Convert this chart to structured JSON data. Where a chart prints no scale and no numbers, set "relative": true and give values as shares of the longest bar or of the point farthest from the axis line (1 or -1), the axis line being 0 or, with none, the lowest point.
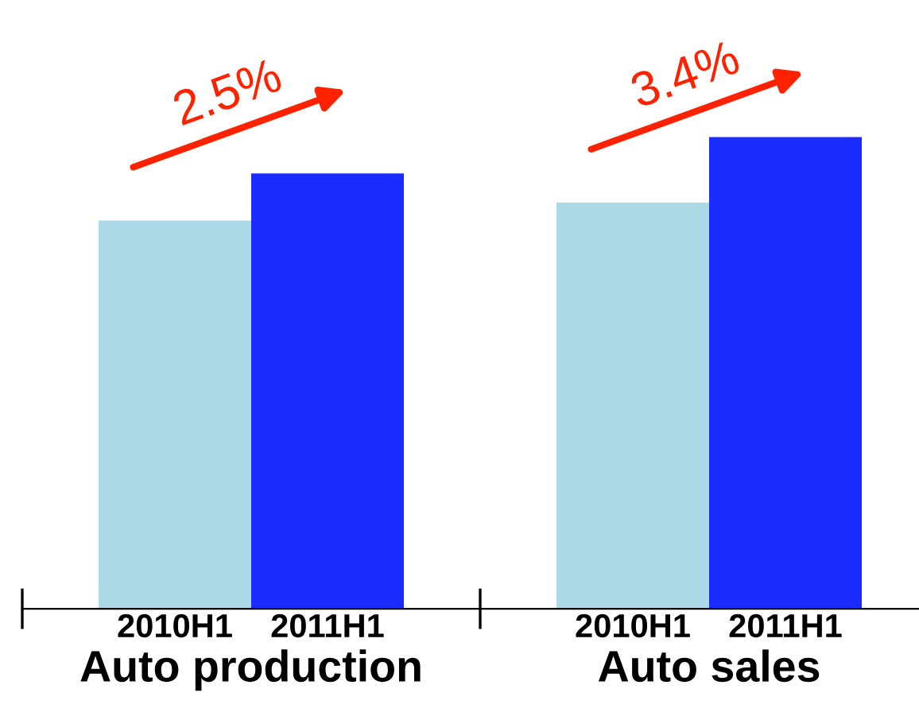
{
  "chart_data": {
    "type": "bar",
    "relative": true,
    "categories": [
      "2010H1",
      "2011H1",
      "2010H1",
      "2011H1"
    ],
    "values": [
      0.823,
      0.923,
      0.861,
      1.0
    ],
    "colors": [
      "#add8e6",
      "#1a2cff",
      "#add8e6",
      "#1a2cff"
    ],
    "annotations": [
      "2.5%",
      "3.4%",
      "Auto production",
      "Auto sales"
    ],
    "grid": false,
    "legend": false
  }
}
